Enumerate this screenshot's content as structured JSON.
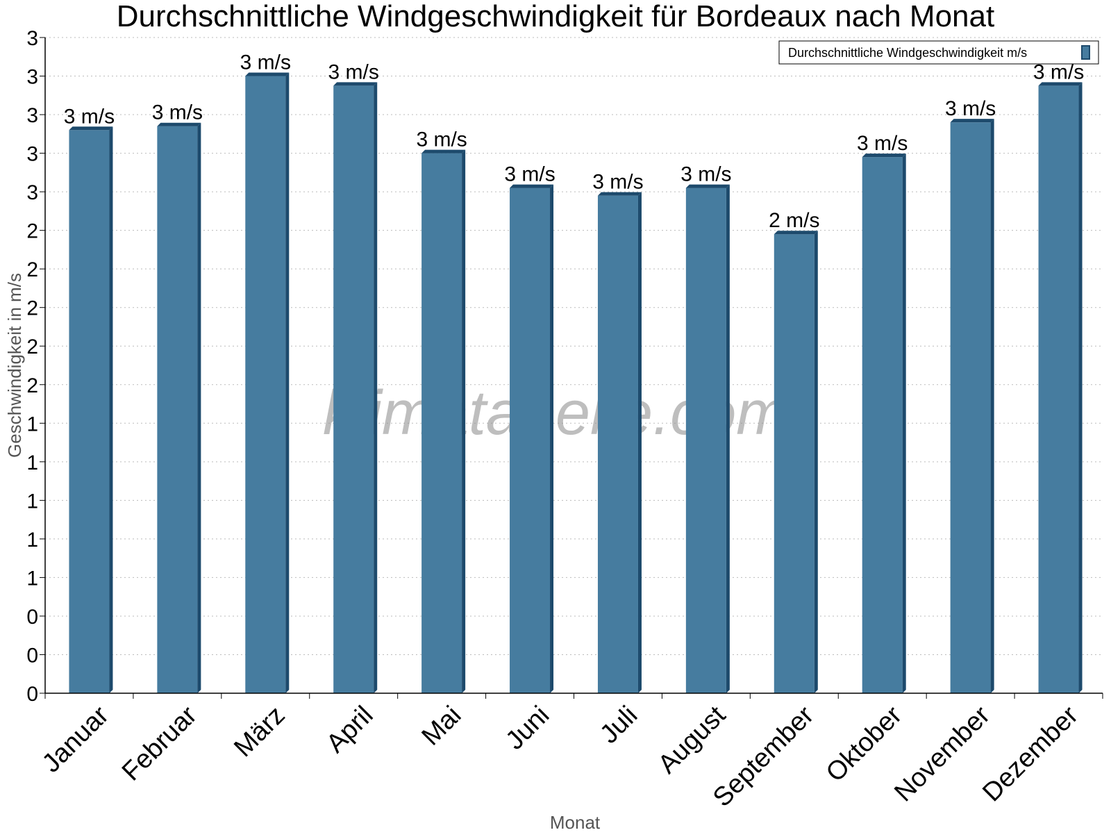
{
  "chart_data": {
    "type": "bar",
    "title": "Durchschnittliche Windgeschwindigkeit für Bordeaux nach Monat",
    "xlabel": "Monat",
    "ylabel": "Geschwindigkeit in m/s",
    "categories": [
      "Januar",
      "Februar",
      "März",
      "April",
      "Mai",
      "Juni",
      "Juli",
      "August",
      "September",
      "Oktober",
      "November",
      "Dezember"
    ],
    "series": [
      {
        "name": "Durchschnittliche Windgeschwindigkeit m/s",
        "values": [
          2.92,
          2.94,
          3.2,
          3.15,
          2.8,
          2.62,
          2.58,
          2.62,
          2.38,
          2.78,
          2.96,
          3.15
        ],
        "labels": [
          "3 m/s",
          "3 m/s",
          "3 m/s",
          "3 m/s",
          "3 m/s",
          "3 m/s",
          "3 m/s",
          "3 m/s",
          "2 m/s",
          "3 m/s",
          "3 m/s",
          "3 m/s"
        ]
      }
    ],
    "ylim": [
      0,
      3.4
    ],
    "yticks": [
      0,
      0.2,
      0.4,
      0.6,
      0.8,
      1.0,
      1.2,
      1.4,
      1.6,
      1.8,
      2.0,
      2.2,
      2.4,
      2.6,
      2.8,
      3.0,
      3.2,
      3.4
    ],
    "ytick_labels": [
      "0",
      "0",
      "0",
      "1",
      "1",
      "1",
      "1",
      "1",
      "2",
      "2",
      "2",
      "2",
      "2",
      "3",
      "3",
      "3",
      "3",
      "3"
    ],
    "grid": true,
    "legend_position": "top-right",
    "colors": {
      "bar_face": "#467c9f",
      "bar_edge": "#1d4a6c",
      "grid": "#bbbbbb"
    },
    "watermark": "klimatabelle.com"
  }
}
